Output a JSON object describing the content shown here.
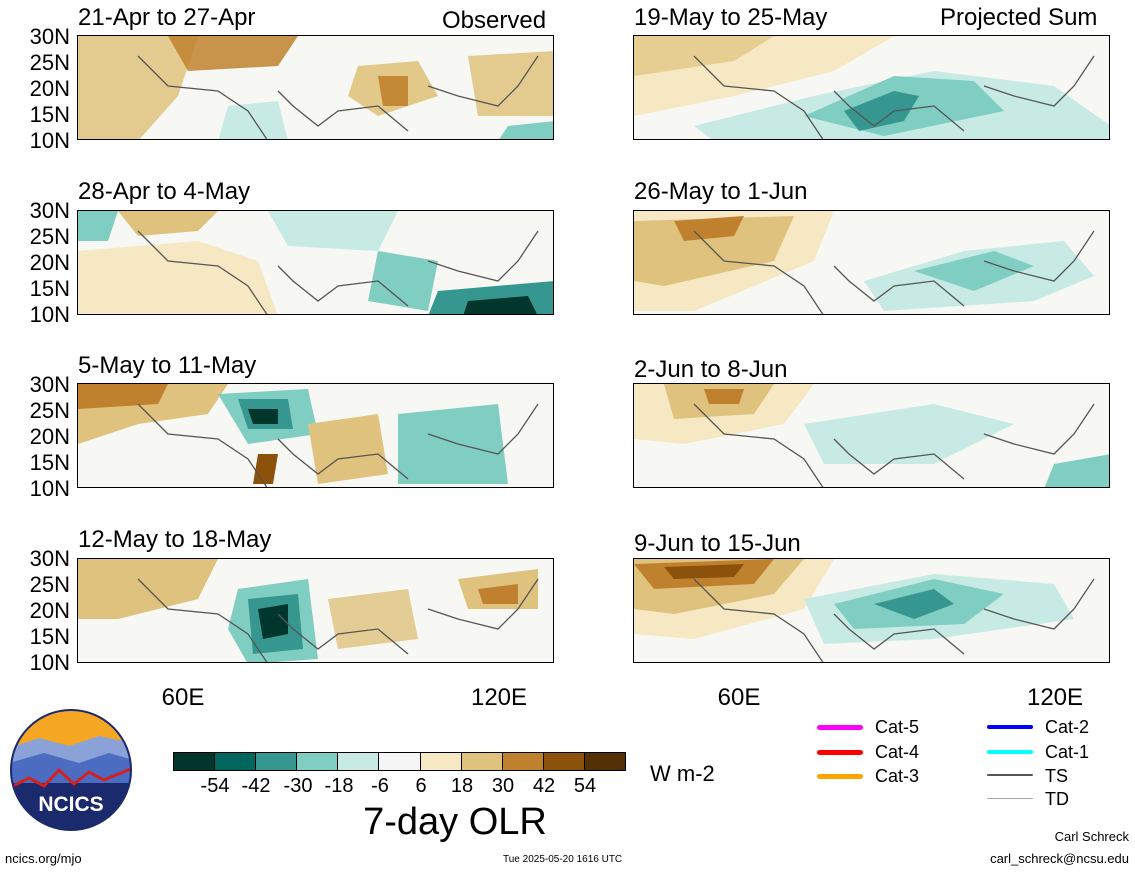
{
  "panels": {
    "observed_label": "Observed",
    "projected_label": "Projected Sum",
    "left": [
      "21-Apr to 27-Apr",
      "28-Apr to 4-May",
      "5-May to 11-May",
      "12-May to 18-May"
    ],
    "right": [
      "19-May to 25-May",
      "26-May to 1-Jun",
      "2-Jun to 8-Jun",
      "9-Jun to 15-Jun"
    ]
  },
  "axes": {
    "lat_labels": [
      "30N",
      "25N",
      "20N",
      "15N",
      "10N"
    ],
    "lon_labels": [
      "60E",
      "120E"
    ]
  },
  "colorbar": {
    "title": "7-day OLR",
    "units": "W m-2",
    "ticks": [
      "-54",
      "-42",
      "-30",
      "-18",
      "-6",
      "6",
      "18",
      "30",
      "42",
      "54"
    ],
    "colors": [
      "#01362d",
      "#01665e",
      "#35978f",
      "#80cdc1",
      "#c7eae5",
      "#f5f5f5",
      "#f6e8c3",
      "#dfc27d",
      "#bf812d",
      "#8c510a",
      "#543005"
    ]
  },
  "legend": {
    "items": [
      {
        "label": "Cat-5",
        "color": "#ff00ff"
      },
      {
        "label": "Cat-4",
        "color": "#ff0000"
      },
      {
        "label": "Cat-3",
        "color": "#ffa500"
      },
      {
        "label": "Cat-2",
        "color": "#0000ff"
      },
      {
        "label": "Cat-1",
        "color": "#00ffff"
      },
      {
        "label": "TS",
        "color": "#555555"
      },
      {
        "label": "TD",
        "color": "#aaaaaa"
      }
    ]
  },
  "logo": {
    "text": "NCICS"
  },
  "footer": {
    "left": "ncics.org/mjo",
    "center": "Tue 2025-05-20 1616 UTC",
    "author": "Carl Schreck",
    "email": "carl_schreck@ncsu.edu"
  }
}
